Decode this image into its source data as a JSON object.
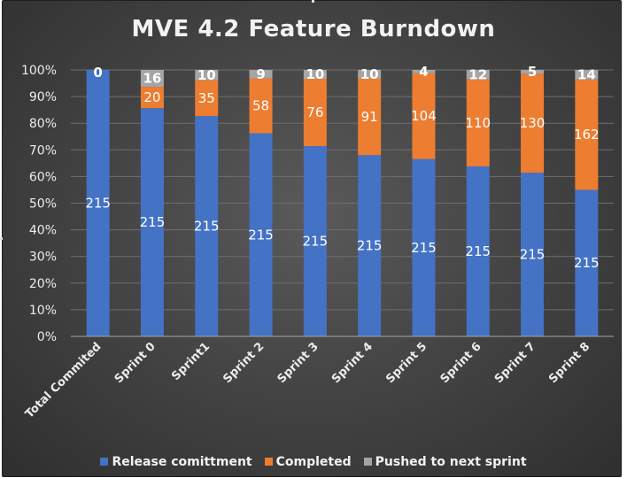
{
  "chart_data": {
    "type": "bar",
    "stacked": "percent",
    "title": "MVE 4.2 Feature Burndown",
    "xlabel": "",
    "ylabel": "",
    "ylim": [
      0,
      100
    ],
    "y_ticks": [
      "0%",
      "10%",
      "20%",
      "30%",
      "40%",
      "50%",
      "60%",
      "70%",
      "80%",
      "90%",
      "100%"
    ],
    "categories": [
      "Total Commited",
      "Sprint 0",
      "Sprint1",
      "Sprint 2",
      "Sprint 3",
      "Sprint 4",
      "Sprint 5",
      "Sprint 6",
      "Sprint 7",
      "Sprint 8"
    ],
    "series": [
      {
        "name": "Release comittment",
        "color": "#4472c4",
        "values": [
          215,
          215,
          215,
          215,
          215,
          215,
          215,
          215,
          215,
          215
        ]
      },
      {
        "name": "Completed",
        "color": "#ed7d31",
        "values": [
          0,
          20,
          35,
          58,
          76,
          91,
          104,
          110,
          130,
          162
        ]
      },
      {
        "name": "Pushed to next sprint",
        "color": "#a5a5a5",
        "values": [
          0,
          16,
          10,
          9,
          10,
          10,
          4,
          12,
          5,
          14
        ]
      }
    ],
    "top_labels": [
      "0",
      "16",
      "10",
      "9",
      "10",
      "10",
      "4",
      "12",
      "5",
      "14"
    ],
    "grid": true,
    "legend_position": "bottom"
  }
}
